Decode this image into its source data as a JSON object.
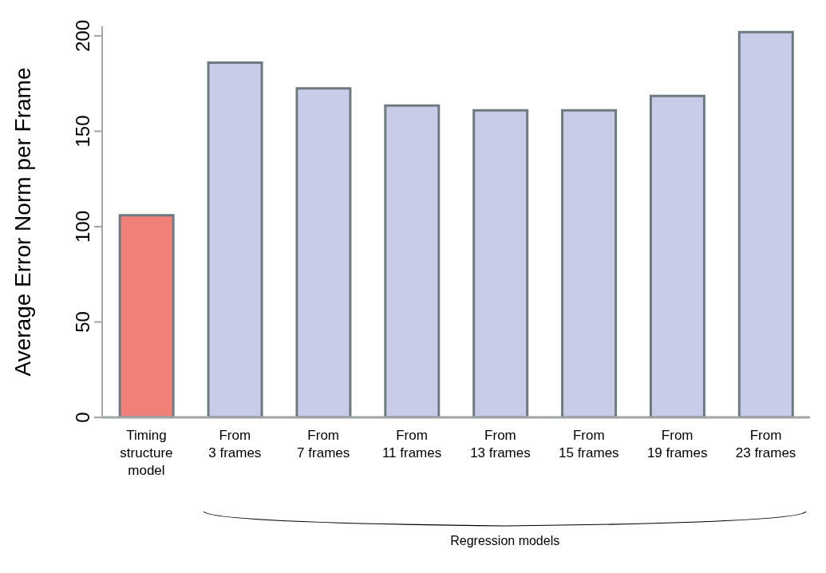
{
  "chart_data": {
    "type": "bar",
    "ylabel": "Average Error Norm per Frame",
    "categories": [
      "Timing\nstructure\nmodel",
      "From\n3 frames",
      "From\n7 frames",
      "From\n11 frames",
      "From\n13 frames",
      "From\n15 frames",
      "From\n19 frames",
      "From\n23 frames"
    ],
    "values": [
      106,
      186,
      172.5,
      163.5,
      161,
      161,
      168.5,
      202
    ],
    "colors": [
      "#f08078",
      "#c8cce8",
      "#c8cce8",
      "#c8cce8",
      "#c8cce8",
      "#c8cce8",
      "#c8cce8",
      "#c8cce8"
    ],
    "ylim": [
      0,
      205
    ],
    "yticks": [
      0,
      50,
      100,
      150,
      200
    ],
    "annotations": [
      "Regression models"
    ]
  }
}
